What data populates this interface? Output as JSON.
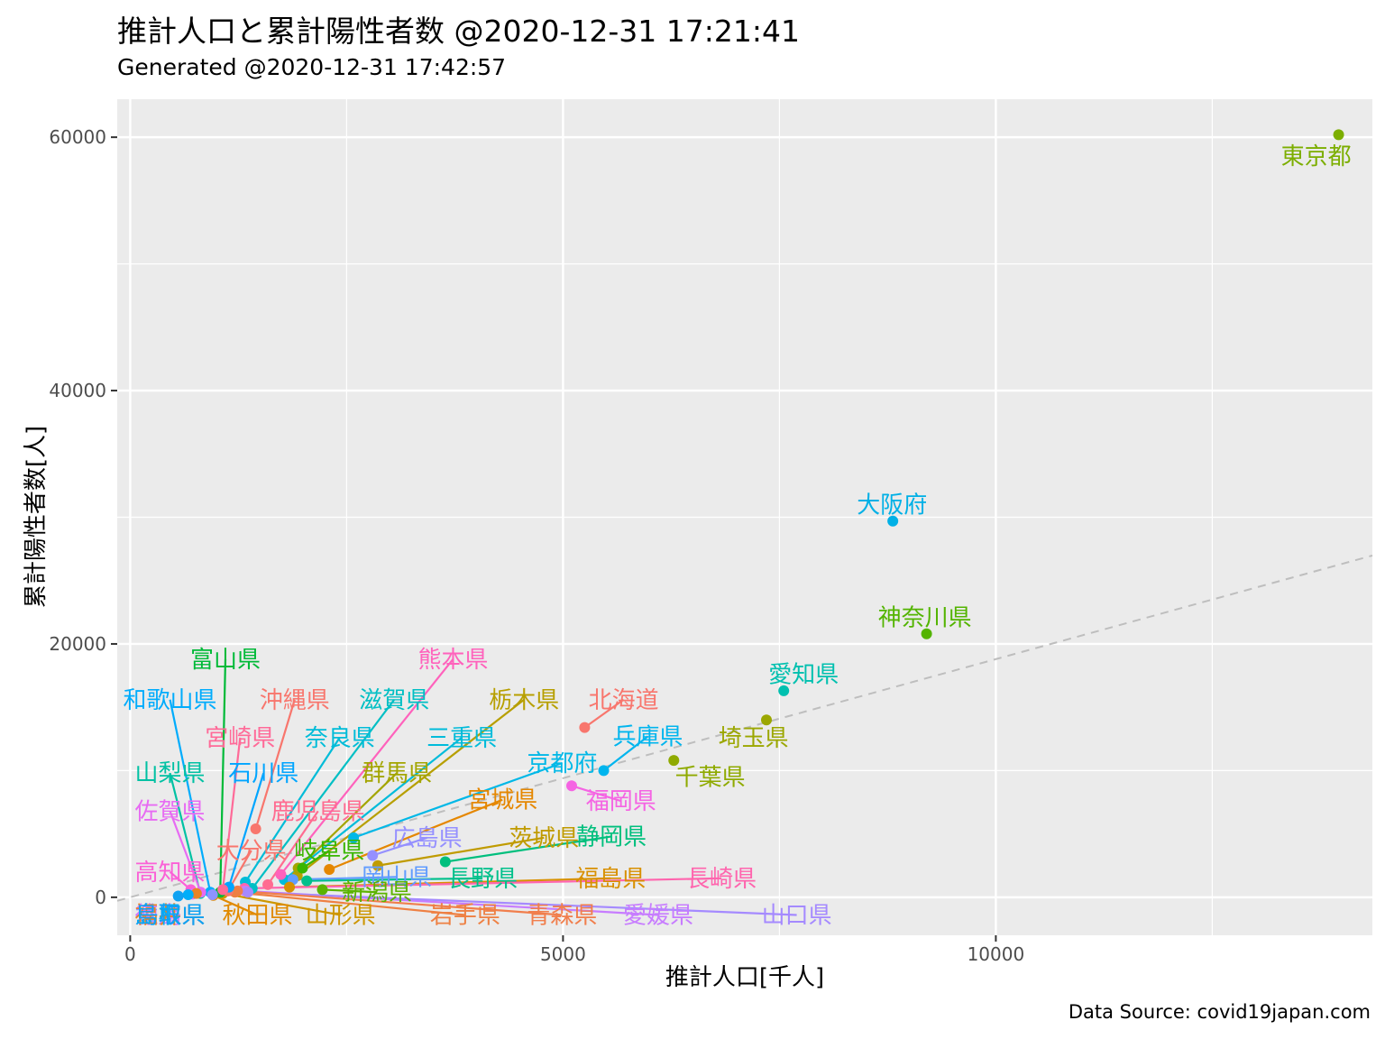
{
  "title": "推計人口と累計陽性者数 @2020-12-31 17:21:41",
  "subtitle": "Generated @2020-12-31 17:42:57",
  "caption": "Data Source: covid19japan.com",
  "chart_data": {
    "type": "scatter",
    "xlabel": "推計人口[千人]",
    "ylabel": "累計陽性者数[人]",
    "xlim": [
      -150,
      14350
    ],
    "ylim": [
      -3000,
      63000
    ],
    "xticks": [
      0,
      5000,
      10000
    ],
    "yticks": [
      0,
      20000,
      40000,
      60000
    ],
    "grid": true,
    "legend": "none",
    "trend_line": {
      "style": "dashed",
      "color": "#bebebe",
      "slope": 1.88
    },
    "points": [
      {
        "name": "東京都",
        "x": 13960,
        "y": 60200,
        "color": "#7CAE00"
      },
      {
        "name": "大阪府",
        "x": 8810,
        "y": 29700,
        "color": "#00B0E6"
      },
      {
        "name": "神奈川県",
        "x": 9200,
        "y": 20800,
        "color": "#53B400"
      },
      {
        "name": "愛知県",
        "x": 7550,
        "y": 16300,
        "color": "#00C0AF"
      },
      {
        "name": "埼玉県",
        "x": 7350,
        "y": 14000,
        "color": "#9BA700"
      },
      {
        "name": "千葉県",
        "x": 6280,
        "y": 10800,
        "color": "#8FAA00"
      },
      {
        "name": "北海道",
        "x": 5250,
        "y": 13400,
        "color": "#F8766D"
      },
      {
        "name": "兵庫県",
        "x": 5470,
        "y": 10000,
        "color": "#00B5EE"
      },
      {
        "name": "福岡県",
        "x": 5100,
        "y": 8800,
        "color": "#F564E3"
      },
      {
        "name": "京都府",
        "x": 2580,
        "y": 4700,
        "color": "#00B8E7"
      },
      {
        "name": "静岡県",
        "x": 3640,
        "y": 2800,
        "color": "#00BF7D"
      },
      {
        "name": "茨城県",
        "x": 2860,
        "y": 2500,
        "color": "#C09B00"
      },
      {
        "name": "広島県",
        "x": 2800,
        "y": 3300,
        "color": "#9590FF"
      },
      {
        "name": "宮城県",
        "x": 2300,
        "y": 2200,
        "color": "#E58700"
      },
      {
        "name": "栃木県",
        "x": 1930,
        "y": 1700,
        "color": "#B79F00"
      },
      {
        "name": "群馬県",
        "x": 1940,
        "y": 2300,
        "color": "#A3A500"
      },
      {
        "name": "岐阜県",
        "x": 1990,
        "y": 2300,
        "color": "#39B600"
      },
      {
        "name": "三重県",
        "x": 1780,
        "y": 1400,
        "color": "#00BBDA"
      },
      {
        "name": "熊本県",
        "x": 1740,
        "y": 1800,
        "color": "#FF62BC"
      },
      {
        "name": "奈良県",
        "x": 1330,
        "y": 1200,
        "color": "#00BCD8"
      },
      {
        "name": "滋賀県",
        "x": 1410,
        "y": 700,
        "color": "#00BFC4"
      },
      {
        "name": "沖縄県",
        "x": 1450,
        "y": 5400,
        "color": "#F8766D"
      },
      {
        "name": "鹿児島県",
        "x": 1590,
        "y": 1000,
        "color": "#FF6C91"
      },
      {
        "name": "長野県",
        "x": 2040,
        "y": 1300,
        "color": "#00C08B"
      },
      {
        "name": "岡山県",
        "x": 1880,
        "y": 1400,
        "color": "#619CFF"
      },
      {
        "name": "福島県",
        "x": 1840,
        "y": 800,
        "color": "#D89000"
      },
      {
        "name": "長崎県",
        "x": 1320,
        "y": 700,
        "color": "#FF65AE"
      },
      {
        "name": "新潟県",
        "x": 2220,
        "y": 600,
        "color": "#5BB300"
      },
      {
        "name": "愛媛県",
        "x": 1330,
        "y": 500,
        "color": "#C77CFF"
      },
      {
        "name": "山口県",
        "x": 1360,
        "y": 400,
        "color": "#A58AFF"
      },
      {
        "name": "青森県",
        "x": 1240,
        "y": 500,
        "color": "#F17E4C"
      },
      {
        "name": "岩手県",
        "x": 1210,
        "y": 400,
        "color": "#EE8043"
      },
      {
        "name": "山形県",
        "x": 1070,
        "y": 300,
        "color": "#CD9600"
      },
      {
        "name": "秋田県",
        "x": 960,
        "y": 150,
        "color": "#E18A00"
      },
      {
        "name": "大分県",
        "x": 1130,
        "y": 500,
        "color": "#F8766D"
      },
      {
        "name": "石川県",
        "x": 1140,
        "y": 800,
        "color": "#00A5FF"
      },
      {
        "name": "富山県",
        "x": 1040,
        "y": 400,
        "color": "#00BA38"
      },
      {
        "name": "宮崎県",
        "x": 1070,
        "y": 600,
        "color": "#FF6A98"
      },
      {
        "name": "山梨県",
        "x": 810,
        "y": 300,
        "color": "#00C1A3"
      },
      {
        "name": "和歌山県",
        "x": 925,
        "y": 400,
        "color": "#00ACFC"
      },
      {
        "name": "佐賀県",
        "x": 815,
        "y": 400,
        "color": "#E76BF3"
      },
      {
        "name": "高知県",
        "x": 700,
        "y": 600,
        "color": "#FB61D7"
      },
      {
        "name": "香川県",
        "x": 950,
        "y": 200,
        "color": "#8D93FF"
      },
      {
        "name": "徳島県",
        "x": 720,
        "y": 250,
        "color": "#D177FF"
      },
      {
        "name": "福井県",
        "x": 765,
        "y": 300,
        "color": "#E88425"
      },
      {
        "name": "島根県",
        "x": 670,
        "y": 200,
        "color": "#00AEF9"
      },
      {
        "name": "鳥取県",
        "x": 555,
        "y": 100,
        "color": "#0FA2F2"
      }
    ]
  },
  "labels": [
    {
      "name": "東京都",
      "x": 13960,
      "y": 60200,
      "lx": 13700,
      "ly": 58500,
      "line": false
    },
    {
      "name": "大阪府",
      "x": 8810,
      "y": 29700,
      "lx": 8800,
      "ly": 31000,
      "line": false
    },
    {
      "name": "神奈川県",
      "x": 9200,
      "y": 20800,
      "lx": 9180,
      "ly": 22100,
      "line": false
    },
    {
      "name": "愛知県",
      "x": 7550,
      "y": 16300,
      "lx": 7780,
      "ly": 17600,
      "line": false
    },
    {
      "name": "埼玉県",
      "x": 7350,
      "y": 14000,
      "lx": 7200,
      "ly": 12600,
      "line": false
    },
    {
      "name": "千葉県",
      "x": 6280,
      "y": 10800,
      "lx": 6700,
      "ly": 9500,
      "line": false
    },
    {
      "name": "北海道",
      "x": 5250,
      "y": 13400,
      "lx": 5700,
      "ly": 15600,
      "line": true
    },
    {
      "name": "兵庫県",
      "x": 5470,
      "y": 10000,
      "lx": 5980,
      "ly": 12700,
      "line": true
    },
    {
      "name": "福岡県",
      "x": 5100,
      "y": 8800,
      "lx": 5670,
      "ly": 7600,
      "line": true
    },
    {
      "name": "京都府",
      "x": 2580,
      "y": 4700,
      "lx": 4990,
      "ly": 10600,
      "line": true
    },
    {
      "name": "静岡県",
      "x": 3640,
      "y": 2800,
      "lx": 5560,
      "ly": 4800,
      "line": true
    },
    {
      "name": "茨城県",
      "x": 2860,
      "y": 2500,
      "lx": 4780,
      "ly": 4700,
      "line": true
    },
    {
      "name": "広島県",
      "x": 2800,
      "y": 3300,
      "lx": 3430,
      "ly": 4700,
      "line": true
    },
    {
      "name": "宮城県",
      "x": 2300,
      "y": 2200,
      "lx": 4300,
      "ly": 7700,
      "line": true
    },
    {
      "name": "栃木県",
      "x": 1930,
      "y": 1700,
      "lx": 4550,
      "ly": 15600,
      "line": true
    },
    {
      "name": "群馬県",
      "x": 1940,
      "y": 2300,
      "lx": 3080,
      "ly": 9800,
      "line": true
    },
    {
      "name": "岐阜県",
      "x": 1990,
      "y": 2300,
      "lx": 2300,
      "ly": 3700,
      "line": true
    },
    {
      "name": "三重県",
      "x": 1780,
      "y": 1400,
      "lx": 3830,
      "ly": 12600,
      "line": true
    },
    {
      "name": "熊本県",
      "x": 1740,
      "y": 1800,
      "lx": 3730,
      "ly": 18800,
      "line": true
    },
    {
      "name": "奈良県",
      "x": 1330,
      "y": 1200,
      "lx": 2420,
      "ly": 12600,
      "line": true
    },
    {
      "name": "滋賀県",
      "x": 1410,
      "y": 700,
      "lx": 3050,
      "ly": 15600,
      "line": true
    },
    {
      "name": "沖縄県",
      "x": 1450,
      "y": 5400,
      "lx": 1900,
      "ly": 15600,
      "line": true
    },
    {
      "name": "鹿児島県",
      "x": 1590,
      "y": 1000,
      "lx": 2170,
      "ly": 6800,
      "line": true
    },
    {
      "name": "長野県",
      "x": 2040,
      "y": 1300,
      "lx": 4070,
      "ly": 1500,
      "line": true
    },
    {
      "name": "岡山県",
      "x": 1880,
      "y": 1400,
      "lx": 3080,
      "ly": 1600,
      "line": true
    },
    {
      "name": "福島県",
      "x": 1840,
      "y": 800,
      "lx": 5550,
      "ly": 1500,
      "line": true
    },
    {
      "name": "長崎県",
      "x": 1320,
      "y": 700,
      "lx": 6830,
      "ly": 1500,
      "line": true
    },
    {
      "name": "新潟県",
      "x": 2220,
      "y": 600,
      "lx": 2850,
      "ly": 400,
      "line": true
    },
    {
      "name": "愛媛県",
      "x": 1330,
      "y": 500,
      "lx": 6100,
      "ly": -1400,
      "line": true
    },
    {
      "name": "山口県",
      "x": 1360,
      "y": 400,
      "lx": 7700,
      "ly": -1400,
      "line": true
    },
    {
      "name": "青森県",
      "x": 1240,
      "y": 500,
      "lx": 4990,
      "ly": -1400,
      "line": true
    },
    {
      "name": "岩手県",
      "x": 1210,
      "y": 400,
      "lx": 3870,
      "ly": -1400,
      "line": true
    },
    {
      "name": "山形県",
      "x": 1070,
      "y": 300,
      "lx": 2430,
      "ly": -1400,
      "line": true
    },
    {
      "name": "秋田県",
      "x": 960,
      "y": 150,
      "lx": 1470,
      "ly": -1400,
      "line": true
    },
    {
      "name": "大分県",
      "x": 1130,
      "y": 500,
      "lx": 1400,
      "ly": 3700,
      "line": true
    },
    {
      "name": "石川県",
      "x": 1140,
      "y": 800,
      "lx": 1540,
      "ly": 9800,
      "line": true
    },
    {
      "name": "富山県",
      "x": 1040,
      "y": 400,
      "lx": 1100,
      "ly": 18800,
      "line": true
    },
    {
      "name": "宮崎県",
      "x": 1070,
      "y": 600,
      "lx": 1270,
      "ly": 12600,
      "line": true
    },
    {
      "name": "山梨県",
      "x": 810,
      "y": 300,
      "lx": 460,
      "ly": 9800,
      "line": true
    },
    {
      "name": "和歌山県",
      "x": 925,
      "y": 400,
      "lx": 460,
      "ly": 15600,
      "line": true
    },
    {
      "name": "佐賀県",
      "x": 815,
      "y": 400,
      "lx": 460,
      "ly": 6800,
      "line": true
    },
    {
      "name": "高知県",
      "x": 700,
      "y": 600,
      "lx": 460,
      "ly": 2000,
      "line": true
    },
    {
      "name": "香川県",
      "x": 950,
      "y": 200,
      "lx": 460,
      "ly": -1400,
      "line": false
    },
    {
      "name": "徳島県",
      "x": 720,
      "y": 250,
      "lx": 460,
      "ly": -1400,
      "line": false
    },
    {
      "name": "福井県",
      "x": 765,
      "y": 300,
      "lx": 460,
      "ly": -1400,
      "line": false
    },
    {
      "name": "島根県",
      "x": 670,
      "y": 200,
      "lx": 460,
      "ly": -1400,
      "line": false
    },
    {
      "name": "鳥取県",
      "x": 555,
      "y": 100,
      "lx": 460,
      "ly": -1400,
      "line": false
    }
  ]
}
